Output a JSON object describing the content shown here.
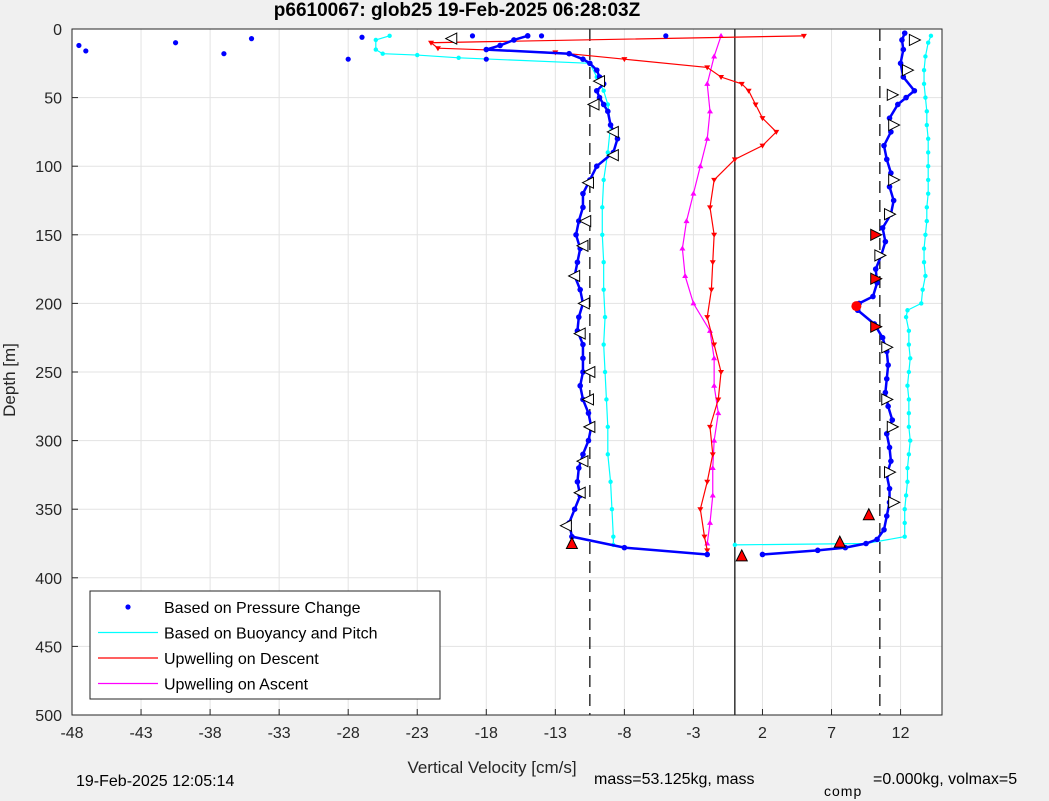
{
  "chart_data": {
    "type": "scatter",
    "title": "p6610067: glob25 19-Feb-2025 06:28:03Z",
    "xlabel": "Vertical Velocity [cm/s]",
    "ylabel": "Depth [m]",
    "xlim": [
      -48,
      15
    ],
    "ylim": [
      0,
      500
    ],
    "y_reversed": true,
    "xticks": [
      "-48",
      "-43",
      "-38",
      "-33",
      "-28",
      "-23",
      "-18",
      "-13",
      "-8",
      "-3",
      "2",
      "7",
      "12"
    ],
    "yticks": [
      "0",
      "50",
      "100",
      "150",
      "200",
      "250",
      "300",
      "350",
      "400",
      "450",
      "500"
    ],
    "grid": true,
    "legend_position": "bottom-left",
    "reference_lines": {
      "solid": 0,
      "dashed": [
        -10.5,
        10.5
      ]
    },
    "series": [
      {
        "name": "Based on Pressure Change",
        "color": "#0000ff",
        "style": "dots",
        "descent": {
          "depth": [
            5,
            8,
            12,
            15,
            18,
            22,
            25,
            30,
            35,
            40,
            45,
            50,
            55,
            60,
            70,
            80,
            90,
            100,
            110,
            120,
            130,
            140,
            150,
            160,
            170,
            180,
            190,
            200,
            210,
            220,
            230,
            240,
            250,
            260,
            270,
            280,
            290,
            300,
            310,
            320,
            330,
            340,
            350,
            360,
            370,
            378,
            383
          ],
          "velocity": [
            -15,
            -16,
            -17,
            -18,
            -12,
            -11,
            -10.5,
            -10,
            -9.8,
            -9.5,
            -10,
            -9.8,
            -9.5,
            -9.2,
            -9,
            -8.5,
            -8.8,
            -10,
            -10.5,
            -11,
            -11,
            -11.3,
            -11.5,
            -11.2,
            -11.4,
            -11.6,
            -11.2,
            -11,
            -11.3,
            -11.4,
            -11,
            -11,
            -11,
            -11.2,
            -11,
            -10.6,
            -10.4,
            -10.6,
            -11,
            -11.3,
            -11.4,
            -11.2,
            -11.6,
            -12,
            -11.8,
            -8,
            -2
          ]
        },
        "ascent": {
          "depth": [
            383,
            380,
            378,
            375,
            372,
            365,
            355,
            345,
            335,
            325,
            315,
            305,
            295,
            285,
            275,
            265,
            255,
            245,
            235,
            225,
            215,
            205,
            200,
            195,
            185,
            175,
            165,
            155,
            145,
            135,
            125,
            115,
            105,
            95,
            85,
            75,
            65,
            55,
            50,
            45,
            35,
            25,
            15,
            8,
            3
          ],
          "velocity": [
            2,
            6,
            8,
            9.5,
            10.3,
            10.8,
            11,
            11.2,
            11.2,
            11,
            11.3,
            11.2,
            11,
            11.4,
            11.1,
            10.9,
            11,
            11.1,
            11,
            10.7,
            10.1,
            8.9,
            9,
            10,
            10.3,
            10.2,
            10.6,
            10.9,
            10.7,
            11.3,
            11.5,
            11.2,
            11.3,
            11,
            10.8,
            11.3,
            11.2,
            11.8,
            12.4,
            13,
            12.2,
            12,
            12.2,
            12.1,
            12.3
          ]
        },
        "outliers": {
          "depth": [
            12,
            16,
            10,
            18,
            7,
            22,
            6,
            5,
            5,
            22,
            5
          ],
          "velocity": [
            -47.5,
            -47,
            -40.5,
            -37,
            -35,
            -28,
            -27,
            -19,
            -14,
            -18,
            -5
          ]
        }
      },
      {
        "name": "Based on Buoyancy and Pitch",
        "color": "#00ffff",
        "style": "line-dots",
        "descent": {
          "depth": [
            5,
            8,
            15,
            18,
            19,
            21,
            25,
            35,
            45,
            55,
            70,
            90,
            110,
            130,
            150,
            170,
            190,
            210,
            230,
            250,
            270,
            290,
            310,
            330,
            350,
            370,
            376
          ],
          "velocity": [
            -25,
            -26,
            -26,
            -25.5,
            -23,
            -20,
            -10.5,
            -10,
            -9.5,
            -9.2,
            -9,
            -9.2,
            -9.5,
            -9.6,
            -9.6,
            -9.5,
            -9.5,
            -9.4,
            -9.5,
            -9.4,
            -9.3,
            -9.2,
            -9.2,
            -9,
            -8.9,
            -8.8,
            -8.8
          ]
        },
        "ascent": {
          "depth": [
            376,
            375,
            370,
            360,
            350,
            340,
            330,
            320,
            310,
            300,
            290,
            280,
            270,
            260,
            250,
            240,
            230,
            220,
            210,
            205,
            200,
            190,
            180,
            170,
            160,
            150,
            140,
            130,
            120,
            110,
            100,
            90,
            80,
            70,
            60,
            50,
            40,
            30,
            20,
            10,
            5
          ],
          "velocity": [
            0,
            9.5,
            12.3,
            12.3,
            12.3,
            12.4,
            12.5,
            12.5,
            12.6,
            12.7,
            12.6,
            12.6,
            12.6,
            12.5,
            12.6,
            12.7,
            12.6,
            12.6,
            12.4,
            12.5,
            13.5,
            13.6,
            13.8,
            13.7,
            13.7,
            13.8,
            13.9,
            13.9,
            14,
            14,
            14,
            14,
            14,
            13.9,
            13.9,
            13.8,
            13.7,
            13.7,
            13.8,
            14,
            14.2
          ]
        }
      },
      {
        "name": "Upwelling on Descent",
        "color": "#ff0000",
        "style": "line-triangles",
        "depth": [
          5,
          10,
          14,
          17,
          22,
          28,
          35,
          40,
          45,
          55,
          65,
          75,
          85,
          95,
          110,
          130,
          150,
          170,
          190,
          210,
          230,
          250,
          270,
          290,
          310,
          330,
          350,
          370,
          380
        ],
        "velocity": [
          5,
          -22,
          -21.5,
          -13,
          -8,
          -2,
          -1,
          0.5,
          1,
          1.5,
          2,
          3,
          2,
          0,
          -1.5,
          -1.8,
          -1.5,
          -1.6,
          -1.7,
          -2,
          -1.5,
          -1,
          -1.2,
          -1.8,
          -1.6,
          -2,
          -2.5,
          -2.2,
          -2
        ]
      },
      {
        "name": "Upwelling on Ascent",
        "color": "#ff00ff",
        "style": "line-triangles",
        "depth": [
          5,
          20,
          40,
          60,
          80,
          100,
          120,
          140,
          160,
          180,
          200,
          220,
          240,
          260,
          280,
          300,
          320,
          340,
          360,
          375
        ],
        "velocity": [
          -1,
          -1.5,
          -2,
          -1.8,
          -2,
          -2.5,
          -3,
          -3.5,
          -3.8,
          -3.6,
          -3,
          -1.8,
          -1.5,
          -1.5,
          -1.2,
          -1.5,
          -1.6,
          -1.6,
          -1.8,
          -2
        ]
      }
    ],
    "markers": {
      "open_left_triangles": [
        {
          "v": -20.5,
          "d": 7
        },
        {
          "v": -9.8,
          "d": 38
        },
        {
          "v": -10.2,
          "d": 55
        },
        {
          "v": -8.8,
          "d": 75
        },
        {
          "v": -8.8,
          "d": 92
        },
        {
          "v": -10.6,
          "d": 112
        },
        {
          "v": -10.8,
          "d": 140
        },
        {
          "v": -11,
          "d": 158
        },
        {
          "v": -11.6,
          "d": 180
        },
        {
          "v": -10.9,
          "d": 200
        },
        {
          "v": -11.2,
          "d": 222
        },
        {
          "v": -10.5,
          "d": 250
        },
        {
          "v": -10.6,
          "d": 270
        },
        {
          "v": -10.5,
          "d": 290
        },
        {
          "v": -11,
          "d": 315
        },
        {
          "v": -11.2,
          "d": 338
        },
        {
          "v": -12.2,
          "d": 362
        }
      ],
      "open_right_triangles": [
        {
          "v": 13,
          "d": 8
        },
        {
          "v": 12.5,
          "d": 30
        },
        {
          "v": 11.4,
          "d": 48
        },
        {
          "v": 11.5,
          "d": 70
        },
        {
          "v": 11.5,
          "d": 110
        },
        {
          "v": 11.2,
          "d": 135
        },
        {
          "v": 10.5,
          "d": 165
        },
        {
          "v": 11,
          "d": 232
        },
        {
          "v": 11,
          "d": 270
        },
        {
          "v": 11.4,
          "d": 290
        },
        {
          "v": 11.2,
          "d": 323
        },
        {
          "v": 11.5,
          "d": 345
        }
      ],
      "filled_right_triangles": [
        {
          "v": 10.2,
          "d": 150
        },
        {
          "v": 10.2,
          "d": 182
        },
        {
          "v": 10.2,
          "d": 217
        }
      ],
      "filled_up_triangles": [
        {
          "v": -11.8,
          "d": 375
        },
        {
          "v": 0.5,
          "d": 384
        },
        {
          "v": 7.6,
          "d": 374
        },
        {
          "v": 9.7,
          "d": 354
        }
      ],
      "filled_circle": {
        "v": 8.8,
        "d": 202
      }
    }
  },
  "legend": [
    {
      "label": "Based on Pressure Change",
      "style": "dot",
      "color": "#0000ff"
    },
    {
      "label": "Based on Buoyancy and Pitch",
      "style": "line",
      "color": "#00ffff"
    },
    {
      "label": "Upwelling on Descent",
      "style": "line",
      "color": "#ff0000"
    },
    {
      "label": "Upwelling on Ascent",
      "style": "line",
      "color": "#ff00ff"
    }
  ],
  "footer": {
    "timestamp": "19-Feb-2025 12:05:14",
    "mass_text": "mass=53.125kg, mass",
    "subscript": "comp",
    "comp_text": "=0.000kg, volmax=5"
  }
}
